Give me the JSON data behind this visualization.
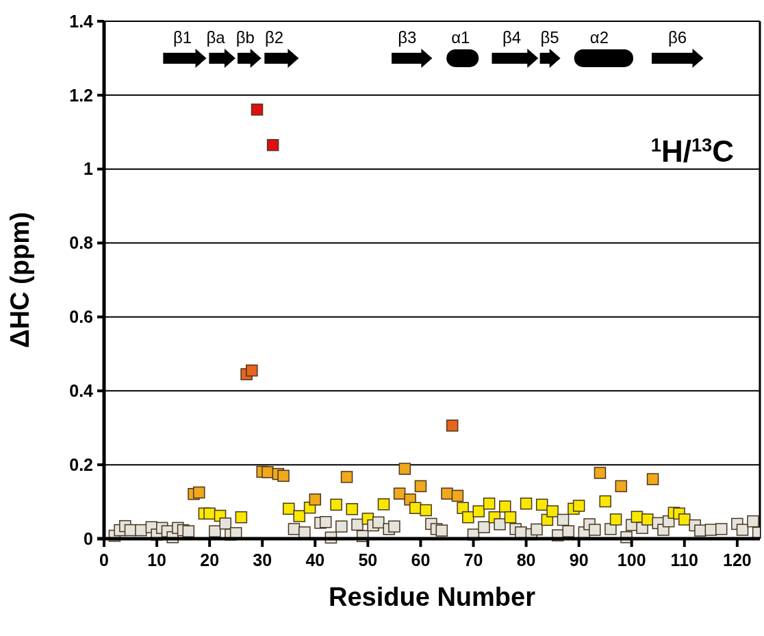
{
  "chart_data": {
    "type": "scatter",
    "xlabel": "Residue Number",
    "ylabel": "ΔHC (ppm)",
    "marker": "square",
    "grid": "y",
    "xlim": [
      0,
      124.3
    ],
    "xticks": [
      0,
      10,
      20,
      30,
      40,
      50,
      60,
      70,
      80,
      90,
      100,
      110,
      120
    ],
    "ylim": [
      0,
      1.4
    ],
    "yticks": [
      0,
      0.2,
      0.4,
      0.6,
      0.8,
      1,
      1.2,
      1.4
    ],
    "annotations": [
      "β1",
      "βa",
      "βb",
      "β2",
      "β3",
      "α1",
      "β4",
      "β5",
      "α2",
      "β6",
      "$^{1}$H/$^{13}$C"
    ],
    "x": [
      2,
      3,
      4,
      5,
      7,
      9,
      10,
      11,
      12,
      13,
      14,
      15,
      16,
      17,
      18,
      19,
      20,
      21,
      22,
      23,
      24,
      25,
      26,
      27,
      28,
      29,
      30,
      31,
      32,
      33,
      34,
      35,
      36,
      37,
      38,
      39,
      40,
      41,
      42,
      43,
      44,
      45,
      46,
      47,
      48,
      49,
      50,
      51,
      52,
      53,
      54,
      55,
      56,
      57,
      58,
      59,
      60,
      61,
      62,
      63,
      64,
      65,
      66,
      67,
      68,
      69,
      70,
      71,
      72,
      73,
      74,
      75,
      76,
      77,
      78,
      79,
      80,
      81,
      82,
      83,
      84,
      85,
      86,
      87,
      88,
      89,
      90,
      91,
      92,
      93,
      94,
      95,
      96,
      97,
      98,
      99,
      100,
      101,
      102,
      103,
      104,
      105,
      106,
      107,
      108,
      109,
      110,
      112,
      113,
      115,
      117,
      120,
      121,
      123,
      124
    ],
    "values": [
      0.008,
      0.023,
      0.034,
      0.023,
      0.023,
      0.031,
      0.011,
      0.029,
      0.02,
      0.004,
      0.029,
      0.023,
      0.02,
      0.121,
      0.125,
      0.068,
      0.068,
      0.02,
      0.062,
      0.041,
      0.011,
      0.015,
      0.058,
      0.445,
      0.455,
      1.161,
      0.181,
      0.18,
      1.065,
      0.175,
      0.17,
      0.081,
      0.026,
      0.061,
      0.017,
      0.084,
      0.106,
      0.043,
      0.045,
      0.003,
      0.092,
      0.033,
      0.167,
      0.08,
      0.038,
      0.007,
      0.054,
      0.036,
      0.044,
      0.093,
      0.026,
      0.033,
      0.122,
      0.189,
      0.106,
      0.083,
      0.142,
      0.077,
      0.04,
      0.026,
      0.022,
      0.122,
      0.306,
      0.116,
      0.083,
      0.058,
      0.011,
      0.074,
      0.031,
      0.095,
      0.058,
      0.039,
      0.087,
      0.058,
      0.026,
      0.017,
      0.095,
      0.012,
      0.025,
      0.092,
      0.051,
      0.074,
      0.009,
      0.051,
      0.02,
      0.081,
      0.089,
      0.017,
      0.039,
      0.024,
      0.178,
      0.101,
      0.026,
      0.052,
      0.142,
      0.004,
      0.037,
      0.059,
      0.029,
      0.052,
      0.161,
      0.042,
      0.024,
      0.047,
      0.07,
      0.068,
      0.052,
      0.036,
      0.022,
      0.024,
      0.026,
      0.04,
      0.024,
      0.047,
      0.016
    ],
    "colors": [
      "#e4e4dc",
      "#e4e4dc",
      "#e4e4dc",
      "#e4e4dc",
      "#e4e4dc",
      "#e4e4dc",
      "#e4e4dc",
      "#e4e4dc",
      "#e4e4dc",
      "#e4e4dc",
      "#e4e4dc",
      "#e4e4dc",
      "#e4e4dc",
      "#f0a81c",
      "#f0a81c",
      "#f8e800",
      "#f8e800",
      "#e4e4dc",
      "#f8e800",
      "#e4e4dc",
      "#e4e4dc",
      "#e4e4dc",
      "#f8e800",
      "#e8641c",
      "#e8641c",
      "#e01010",
      "#f0a81c",
      "#f0a81c",
      "#e01010",
      "#f0a81c",
      "#f0a81c",
      "#f8e800",
      "#e4e4dc",
      "#f8e800",
      "#e4e4dc",
      "#f8e800",
      "#f0a81c",
      "#e4e4dc",
      "#e4e4dc",
      "#e4e4dc",
      "#f8e800",
      "#e4e4dc",
      "#f0a81c",
      "#f8e800",
      "#e4e4dc",
      "#e4e4dc",
      "#f8e800",
      "#e4e4dc",
      "#e4e4dc",
      "#f8e800",
      "#e4e4dc",
      "#e4e4dc",
      "#f0a81c",
      "#f0a81c",
      "#f0a81c",
      "#f8e800",
      "#f0a81c",
      "#f8e800",
      "#e4e4dc",
      "#e4e4dc",
      "#e4e4dc",
      "#f0a81c",
      "#e8641c",
      "#f0a81c",
      "#f8e800",
      "#f8e800",
      "#e4e4dc",
      "#f8e800",
      "#e4e4dc",
      "#f8e800",
      "#f8e800",
      "#e4e4dc",
      "#f8e800",
      "#f8e800",
      "#e4e4dc",
      "#e4e4dc",
      "#f8e800",
      "#e4e4dc",
      "#e4e4dc",
      "#f8e800",
      "#f8e800",
      "#f8e800",
      "#e4e4dc",
      "#e4e4dc",
      "#e4e4dc",
      "#f8e800",
      "#f8e800",
      "#e4e4dc",
      "#e4e4dc",
      "#e4e4dc",
      "#f0a81c",
      "#f8e800",
      "#e4e4dc",
      "#f8e800",
      "#f0a81c",
      "#e4e4dc",
      "#e4e4dc",
      "#f8e800",
      "#e4e4dc",
      "#f8e800",
      "#f0a81c",
      "#e4e4dc",
      "#e4e4dc",
      "#e4e4dc",
      "#f8e800",
      "#f8e800",
      "#f8e800",
      "#e4e4dc",
      "#e4e4dc",
      "#e4e4dc",
      "#e4e4dc",
      "#e4e4dc",
      "#e4e4dc",
      "#e4e4dc",
      "#e4e4dc"
    ]
  }
}
